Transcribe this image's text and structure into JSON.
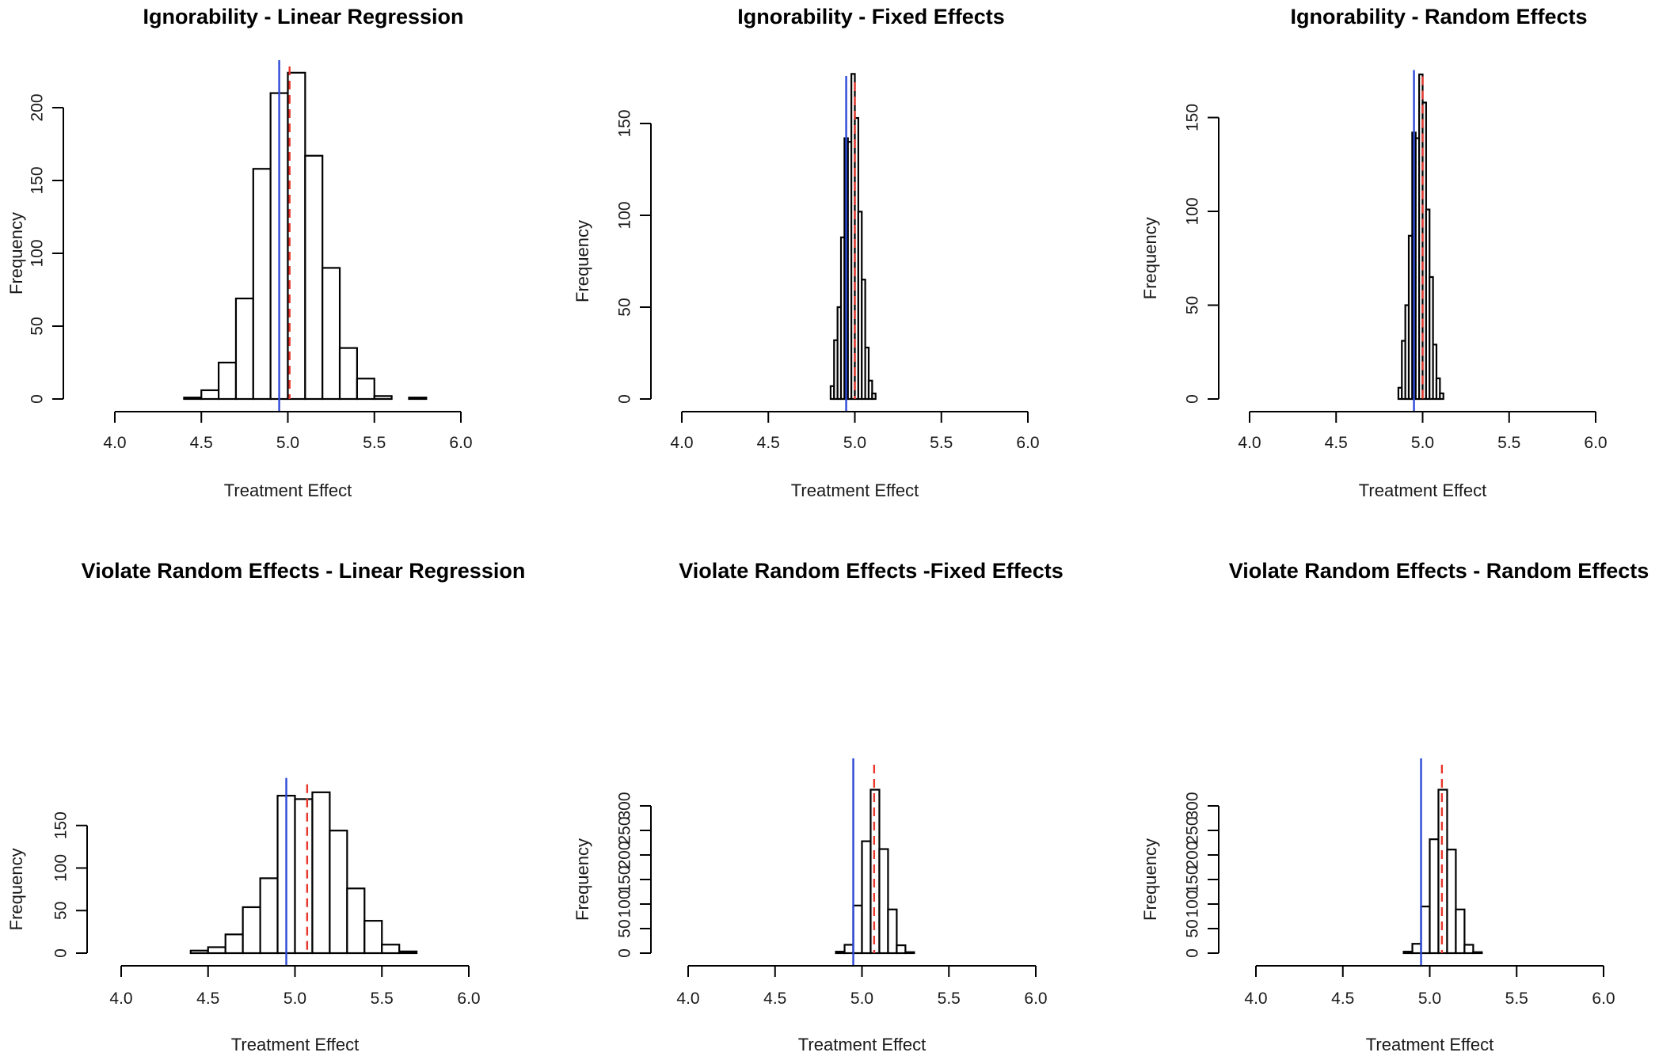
{
  "colors": {
    "blue_line": "#2b49d8",
    "red_line": "#e8372c",
    "bar_fill": "#ffffff",
    "bar_stroke": "#000000"
  },
  "chart_data": [
    {
      "type": "bar",
      "title": "Ignorability - Linear Regression",
      "xlabel": "Treatment Effect",
      "ylabel": "Frequency",
      "xlim": [
        4.0,
        6.0
      ],
      "xticks": [
        "4.0",
        "4.5",
        "5.0",
        "5.5",
        "6.0"
      ],
      "ylim": [
        0,
        200
      ],
      "yticks": [
        "0",
        "50",
        "100",
        "150",
        "200"
      ],
      "bin_start": 4.4,
      "bin_width": 0.1,
      "values": [
        1,
        6,
        25,
        69,
        158,
        210,
        224,
        167,
        90,
        35,
        14,
        2,
        0,
        1
      ],
      "blue_line": 4.95,
      "red_dashed": 5.01
    },
    {
      "type": "bar",
      "title": "Ignorability - Fixed Effects",
      "xlabel": "Treatment Effect",
      "ylabel": "Frequency",
      "xlim": [
        4.0,
        6.0
      ],
      "xticks": [
        "4.0",
        "4.5",
        "5.0",
        "5.5",
        "6.0"
      ],
      "ylim": [
        0,
        150
      ],
      "yticks": [
        "0",
        "50",
        "100",
        "150"
      ],
      "bin_start": 4.86,
      "bin_width": 0.02,
      "values": [
        7,
        32,
        50,
        88,
        142,
        140,
        177,
        153,
        102,
        65,
        28,
        10,
        3
      ],
      "blue_line": 4.95,
      "red_dashed": 5.0
    },
    {
      "type": "bar",
      "title": "Ignorability - Random Effects",
      "xlabel": "Treatment Effect",
      "ylabel": "Frequency",
      "xlim": [
        4.0,
        6.0
      ],
      "xticks": [
        "4.0",
        "4.5",
        "5.0",
        "5.5",
        "6.0"
      ],
      "ylim": [
        0,
        150
      ],
      "yticks": [
        "0",
        "50",
        "100",
        "150"
      ],
      "bin_start": 4.86,
      "bin_width": 0.02,
      "values": [
        6,
        31,
        50,
        87,
        142,
        139,
        173,
        158,
        101,
        65,
        29,
        11,
        3
      ],
      "blue_line": 4.95,
      "red_dashed": 5.0
    },
    {
      "type": "bar",
      "title": "Violate Random Effects - Linear Regression",
      "xlabel": "Treatment Effect",
      "ylabel": "Frequency",
      "xlim": [
        4.0,
        6.0
      ],
      "xticks": [
        "4.0",
        "4.5",
        "5.0",
        "5.5",
        "6.0"
      ],
      "ylim": [
        0,
        150
      ],
      "yticks": [
        "0",
        "50",
        "100",
        "150"
      ],
      "bin_start": 4.4,
      "bin_width": 0.1,
      "values": [
        3,
        7,
        22,
        54,
        88,
        185,
        181,
        189,
        144,
        76,
        38,
        10,
        2
      ],
      "blue_line": 4.95,
      "red_dashed": 5.07
    },
    {
      "type": "bar",
      "title": "Violate Random Effects -Fixed Effects",
      "xlabel": "Treatment Effect",
      "ylabel": "Frequency",
      "xlim": [
        4.0,
        6.0
      ],
      "xticks": [
        "4.0",
        "4.5",
        "5.0",
        "5.5",
        "6.0"
      ],
      "ylim": [
        0,
        300
      ],
      "yticks": [
        "0",
        "50",
        "100",
        "150",
        "200",
        "250",
        "300"
      ],
      "bin_start": 4.85,
      "bin_width": 0.05,
      "values": [
        3,
        17,
        97,
        228,
        333,
        212,
        89,
        16,
        2
      ],
      "blue_line": 4.95,
      "red_dashed": 5.07
    },
    {
      "type": "bar",
      "title": "Violate Random Effects - Random Effects",
      "xlabel": "Treatment Effect",
      "ylabel": "Frequency",
      "xlim": [
        4.0,
        6.0
      ],
      "xticks": [
        "4.0",
        "4.5",
        "5.0",
        "5.5",
        "6.0"
      ],
      "ylim": [
        0,
        300
      ],
      "yticks": [
        "0",
        "50",
        "100",
        "150",
        "200",
        "250",
        "300"
      ],
      "bin_start": 4.85,
      "bin_width": 0.05,
      "values": [
        3,
        19,
        95,
        232,
        333,
        211,
        89,
        17,
        2
      ],
      "blue_line": 4.95,
      "red_dashed": 5.07
    }
  ]
}
